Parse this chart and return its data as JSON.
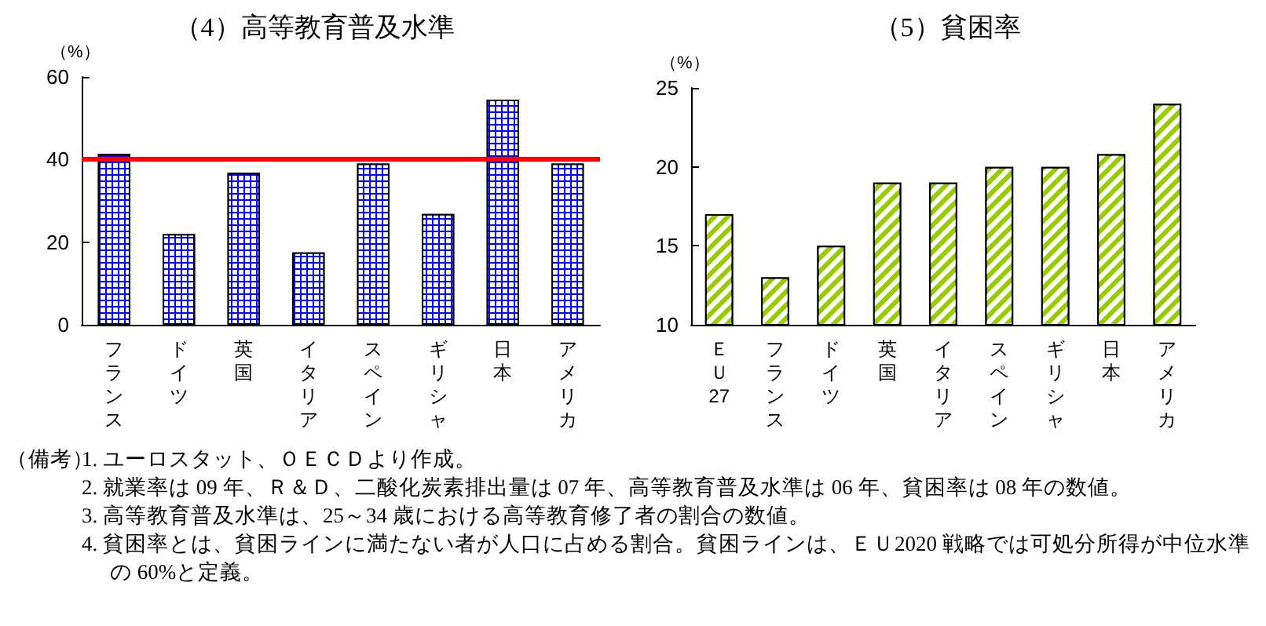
{
  "chart_data": [
    {
      "type": "bar",
      "title": "（4）高等教育普及水準",
      "ylabel": "（%）",
      "categories": [
        "フランス",
        "ドイツ",
        "英国",
        "イタリア",
        "スペイン",
        "ギリシャ",
        "日本",
        "アメリカ"
      ],
      "series": [
        {
          "color": "#0000ff",
          "values": [
            41.4,
            22.0,
            36.8,
            17.5,
            39.0,
            26.8,
            54.5,
            39.0
          ]
        }
      ],
      "ylim": [
        0,
        60
      ],
      "yticks": [
        0,
        20,
        40,
        60
      ],
      "ref_lines": [
        {
          "axis": "y",
          "value": 40,
          "color": "#ff0000"
        }
      ],
      "annotations": [
        "（備考）",
        "1. ユーロスタット、ＯＥＣＤより作成。",
        "2. 就業率は 09 年、Ｒ＆Ｄ、二酸化炭素排出量は 07 年、高等教育普及水準は 06 年、貧困率は 08 年の数値。",
        "3. 高等教育普及水準は、25～34 歳における高等教育修了者の割合の数値。",
        "4. 貧困率とは、貧困ラインに満たない者が人口に占める割合。貧困ラインは、ＥＵ2020 戦略では可処分所得が中位水準の 60%と定義。"
      ]
    },
    {
      "type": "bar",
      "title": "（5）貧困率",
      "ylabel": "（%）",
      "categories": [
        "ＥＵ27",
        "フランス",
        "ドイツ",
        "英国",
        "イタリア",
        "スペイン",
        "ギリシャ",
        "日本",
        "アメリカ"
      ],
      "series": [
        {
          "color": "#99cc00",
          "values": [
            17,
            13,
            15,
            19,
            19,
            20,
            20,
            20.8,
            24
          ]
        }
      ],
      "ylim": [
        10,
        25
      ],
      "yticks": [
        10,
        15,
        20,
        25
      ]
    }
  ]
}
